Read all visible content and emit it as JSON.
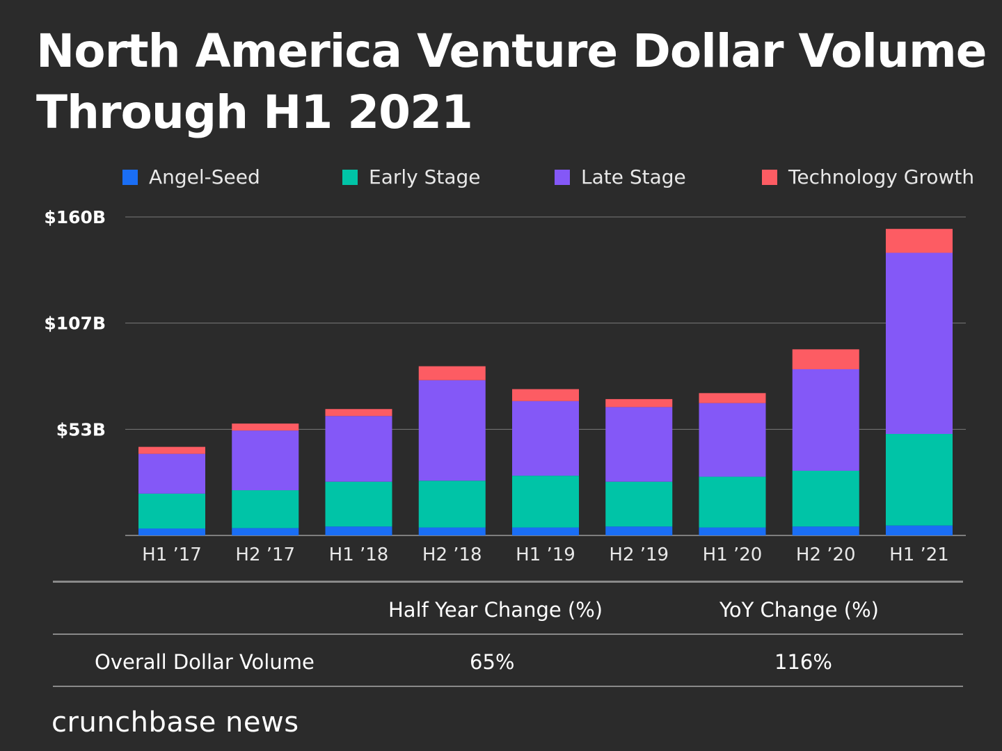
{
  "title": {
    "line1": "North America Venture Dollar Volume",
    "line2": "Through H1 2021"
  },
  "chart_data": {
    "type": "bar",
    "stacked": true,
    "title": "North America Venture Dollar Volume Through H1 2021",
    "categories": [
      "H1 '17",
      "H2 '17",
      "H1 '18",
      "H2 '18",
      "H1 '19",
      "H2 '19",
      "H1 '20",
      "H2 '20",
      "H1 '21"
    ],
    "category_labels": [
      "H1 ’17",
      "H2 ’17",
      "H1 ’18",
      "H2 ’18",
      "H1 ’19",
      "H2 ’19",
      "H1 ’20",
      "H2 ’20",
      "H1 ’21"
    ],
    "series": [
      {
        "name": "Angel-Seed",
        "color": "#1a6ef5",
        "values": [
          3.5,
          3.7,
          4.5,
          4.0,
          4.0,
          4.5,
          4.0,
          4.5,
          5.0
        ]
      },
      {
        "name": "Early Stage",
        "color": "#00c4a7",
        "values": [
          17.5,
          19.0,
          22.5,
          23.5,
          26.0,
          22.5,
          25.5,
          28.0,
          46.0
        ]
      },
      {
        "name": "Late Stage",
        "color": "#8458f7",
        "values": [
          20.0,
          30.0,
          33.0,
          50.5,
          37.5,
          37.5,
          37.0,
          51.0,
          91.0
        ]
      },
      {
        "name": "Technology Growth",
        "color": "#fd5c63",
        "values": [
          3.5,
          3.5,
          3.5,
          7.0,
          6.0,
          4.0,
          5.0,
          10.0,
          12.0
        ]
      }
    ],
    "y_ticks": [
      {
        "value": 53.3,
        "label": "$53B"
      },
      {
        "value": 106.7,
        "label": "$107B"
      },
      {
        "value": 160,
        "label": "$160B"
      }
    ],
    "ylim": [
      0,
      160
    ],
    "xlabel": "",
    "ylabel": "",
    "grid": true,
    "legend": "top"
  },
  "table": {
    "headers": [
      "",
      "Half Year Change (%)",
      "YoY Change (%)"
    ],
    "rows": [
      {
        "label": "Overall Dollar Volume",
        "half_year": "65%",
        "yoy": "116%"
      }
    ]
  },
  "logo": "crunchbase news"
}
